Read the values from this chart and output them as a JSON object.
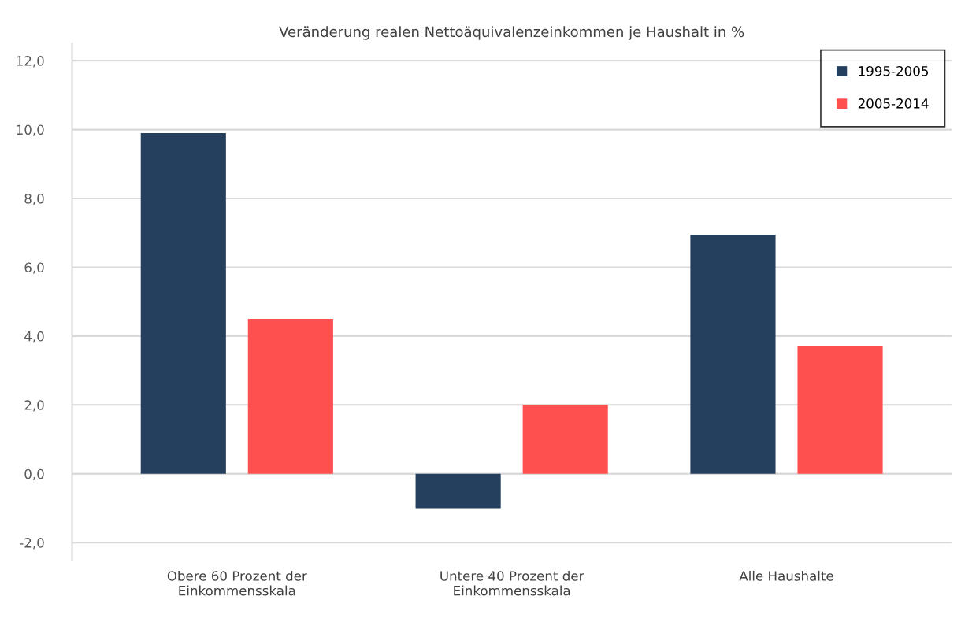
{
  "chart_data": {
    "type": "bar",
    "title": "Veränderung realen Nettoäquivalenzeinkommen je Haushalt in %",
    "categories": [
      "Obere 60 Prozent der\nEinkommensskala",
      "Untere 40 Prozent der\nEinkommensskala",
      "Alle Haushalte"
    ],
    "series": [
      {
        "name": "1995-2005",
        "color": "#253f5f",
        "values": [
          9.9,
          -1.0,
          6.95
        ]
      },
      {
        "name": "2005-2014",
        "color": "#ff5050",
        "values": [
          4.5,
          2.0,
          3.7
        ]
      }
    ],
    "ylim": [
      -2.5,
      12.5
    ],
    "yticks": [
      {
        "value": -2,
        "label": "-2,0"
      },
      {
        "value": 0,
        "label": "0,0"
      },
      {
        "value": 2,
        "label": "2,0"
      },
      {
        "value": 4,
        "label": "4,0"
      },
      {
        "value": 6,
        "label": "6,0"
      },
      {
        "value": 8,
        "label": "8,0"
      },
      {
        "value": 10,
        "label": "10,0"
      },
      {
        "value": 12,
        "label": "12,0"
      }
    ],
    "grid": "y",
    "legend": "top right"
  }
}
